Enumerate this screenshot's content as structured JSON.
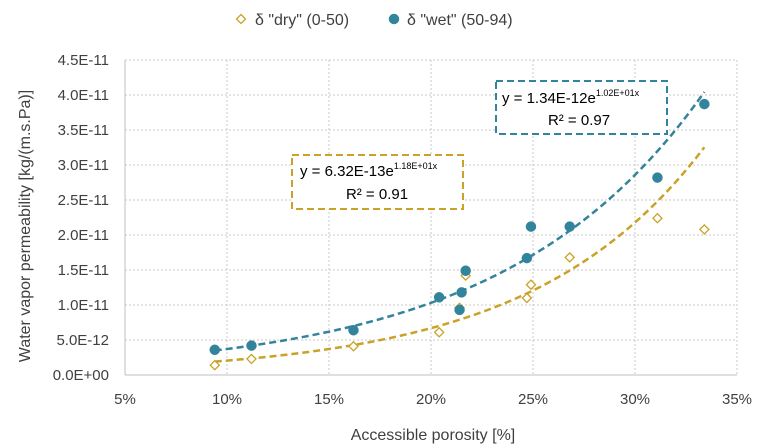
{
  "chart_data": {
    "type": "scatter",
    "xlabel": "Accessible porosity [%]",
    "ylabel": "Water vapor permeability [kg/(m.s.Pa)]",
    "xlim": [
      0.05,
      0.35
    ],
    "ylim": [
      0,
      4.5e-11
    ],
    "x_ticks": [
      "5%",
      "10%",
      "15%",
      "20%",
      "25%",
      "30%",
      "35%"
    ],
    "y_ticks": [
      "0.0E+00",
      "5.0E-12",
      "1.0E-11",
      "1.5E-11",
      "2.0E-11",
      "2.5E-11",
      "3.0E-11",
      "3.5E-11",
      "4.0E-11",
      "4.5E-11"
    ],
    "grid": true,
    "legend_position": "top",
    "series": [
      {
        "name": "δ \"dry\" (0-50)",
        "marker": "diamond-open",
        "color": "#C9A227",
        "points": [
          [
            0.094,
            1.4e-12
          ],
          [
            0.112,
            2.3e-12
          ],
          [
            0.162,
            4.1e-12
          ],
          [
            0.204,
            6.1e-12
          ],
          [
            0.214,
            9.6e-12
          ],
          [
            0.217,
            1.42e-11
          ],
          [
            0.247,
            1.1e-11
          ],
          [
            0.249,
            1.29e-11
          ],
          [
            0.268,
            1.68e-11
          ],
          [
            0.311,
            2.24e-11
          ],
          [
            0.334,
            2.08e-11
          ]
        ],
        "trendline": {
          "type": "exponential",
          "a": 6.32e-13,
          "b": 11.8,
          "x_range": [
            0.094,
            0.334
          ],
          "equation_main": "y = 6.32E-13e",
          "equation_exp": "1.18E+01x",
          "r2_label": "R² = 0.91"
        }
      },
      {
        "name": "δ \"wet\" (50-94)",
        "marker": "circle-filled",
        "color": "#31849B",
        "points": [
          [
            0.094,
            3.6e-12
          ],
          [
            0.112,
            4.2e-12
          ],
          [
            0.162,
            6.4e-12
          ],
          [
            0.204,
            1.11e-11
          ],
          [
            0.214,
            9.3e-12
          ],
          [
            0.215,
            1.18e-11
          ],
          [
            0.217,
            1.49e-11
          ],
          [
            0.247,
            1.67e-11
          ],
          [
            0.249,
            2.12e-11
          ],
          [
            0.268,
            2.12e-11
          ],
          [
            0.311,
            2.82e-11
          ],
          [
            0.334,
            3.87e-11
          ]
        ],
        "trendline": {
          "type": "exponential",
          "a": 1.34e-12,
          "b": 10.2,
          "x_range": [
            0.094,
            0.334
          ],
          "equation_main": "y = 1.34E-12e",
          "equation_exp": "1.02E+01x",
          "r2_label": "R² = 0.97"
        }
      }
    ]
  }
}
